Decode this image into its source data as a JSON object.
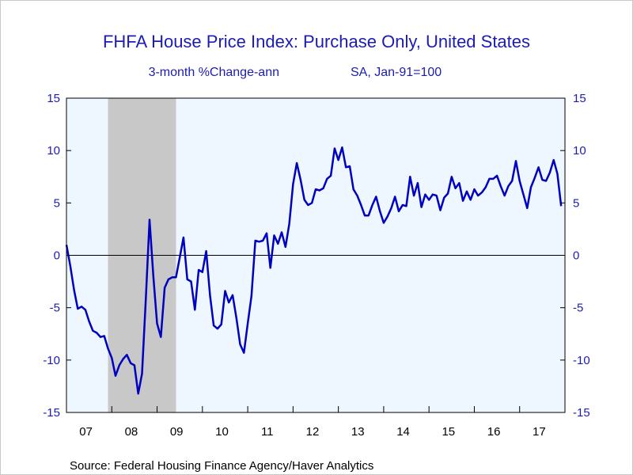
{
  "chart_data": {
    "type": "line",
    "title": "FHFA House Price Index: Purchase Only, United States",
    "subtitle_left": "3-month %Change-ann",
    "subtitle_right": "SA, Jan-91=100",
    "source": "Source:  Federal Housing Finance Agency/Haver Analytics",
    "ylim": [
      -15,
      15
    ],
    "yticks": [
      15,
      10,
      5,
      0,
      -5,
      -10,
      -15
    ],
    "xlim": [
      2007.0,
      2018.0
    ],
    "xtick_labels": [
      "07",
      "08",
      "09",
      "10",
      "11",
      "12",
      "13",
      "14",
      "15",
      "16",
      "17"
    ],
    "grid": false,
    "zero_line": true,
    "recession_shading": [
      [
        2007.917,
        2009.417
      ]
    ],
    "colors": {
      "line": "#0000c0",
      "plot_background": "#eef6ff",
      "recession": "#c8c8c8",
      "text": "#1c1cb4"
    },
    "series": [
      {
        "x": [
          2007.0,
          2007.083,
          2007.167,
          2007.25,
          2007.333,
          2007.417,
          2007.5,
          2007.583,
          2007.667,
          2007.75,
          2007.833,
          2007.917,
          2008.0,
          2008.083,
          2008.167,
          2008.25,
          2008.333,
          2008.417,
          2008.5,
          2008.583,
          2008.667,
          2008.75,
          2008.833,
          2008.917,
          2009.0,
          2009.083,
          2009.167,
          2009.25,
          2009.333,
          2009.417,
          2009.5,
          2009.583,
          2009.667,
          2009.75,
          2009.833,
          2009.917,
          2010.0,
          2010.083,
          2010.167,
          2010.25,
          2010.333,
          2010.417,
          2010.5,
          2010.583,
          2010.667,
          2010.75,
          2010.833,
          2010.917,
          2011.0,
          2011.083,
          2011.167,
          2011.25,
          2011.333,
          2011.417,
          2011.5,
          2011.583,
          2011.667,
          2011.75,
          2011.833,
          2011.917,
          2012.0,
          2012.083,
          2012.167,
          2012.25,
          2012.333,
          2012.417,
          2012.5,
          2012.583,
          2012.667,
          2012.75,
          2012.833,
          2012.917,
          2013.0,
          2013.083,
          2013.167,
          2013.25,
          2013.333,
          2013.417,
          2013.5,
          2013.583,
          2013.667,
          2013.75,
          2013.833,
          2013.917,
          2014.0,
          2014.083,
          2014.167,
          2014.25,
          2014.333,
          2014.417,
          2014.5,
          2014.583,
          2014.667,
          2014.75,
          2014.833,
          2014.917,
          2015.0,
          2015.083,
          2015.167,
          2015.25,
          2015.333,
          2015.417,
          2015.5,
          2015.583,
          2015.667,
          2015.75,
          2015.833,
          2015.917,
          2016.0,
          2016.083,
          2016.167,
          2016.25,
          2016.333,
          2016.417,
          2016.5,
          2016.583,
          2016.667,
          2016.75,
          2016.833,
          2016.917,
          2017.0,
          2017.083,
          2017.167,
          2017.25,
          2017.333,
          2017.417,
          2017.5,
          2017.583,
          2017.667,
          2017.75,
          2017.833,
          2017.917
        ],
        "y": [
          1.0,
          -1.0,
          -3.3,
          -5.1,
          -4.9,
          -5.2,
          -6.3,
          -7.2,
          -7.4,
          -7.8,
          -7.7,
          -8.9,
          -9.8,
          -11.5,
          -10.5,
          -9.9,
          -9.5,
          -10.3,
          -10.5,
          -13.2,
          -11.3,
          -4.3,
          3.4,
          -2.0,
          -6.5,
          -7.8,
          -3.1,
          -2.3,
          -2.1,
          -2.1,
          -0.2,
          1.7,
          -2.3,
          -2.5,
          -5.2,
          -1.4,
          -1.6,
          0.4,
          -3.8,
          -6.7,
          -7.0,
          -6.6,
          -3.4,
          -4.5,
          -3.8,
          -6.0,
          -8.5,
          -9.3,
          -6.5,
          -3.9,
          1.4,
          1.3,
          1.4,
          2.1,
          -1.2,
          1.9,
          1.1,
          2.2,
          0.8,
          3.0,
          6.8,
          8.8,
          7.2,
          5.3,
          4.8,
          5.0,
          6.3,
          6.2,
          6.4,
          7.3,
          7.6,
          10.2,
          9.1,
          10.3,
          8.4,
          8.5,
          6.3,
          5.7,
          4.8,
          3.8,
          3.8,
          4.8,
          5.6,
          4.2,
          3.1,
          3.7,
          4.5,
          5.6,
          4.2,
          4.8,
          4.7,
          7.5,
          5.7,
          6.9,
          4.6,
          5.8,
          5.3,
          5.8,
          5.7,
          4.3,
          5.5,
          5.9,
          7.5,
          6.4,
          6.9,
          5.2,
          6.1,
          5.3,
          6.3,
          5.7,
          6.0,
          6.5,
          7.3,
          7.3,
          7.6,
          6.6,
          5.7,
          6.6,
          7.1,
          9.0,
          7.1,
          5.8,
          4.5,
          6.5,
          7.4,
          8.4,
          7.2,
          7.1,
          7.9,
          9.1,
          7.8,
          4.7
        ]
      }
    ]
  }
}
